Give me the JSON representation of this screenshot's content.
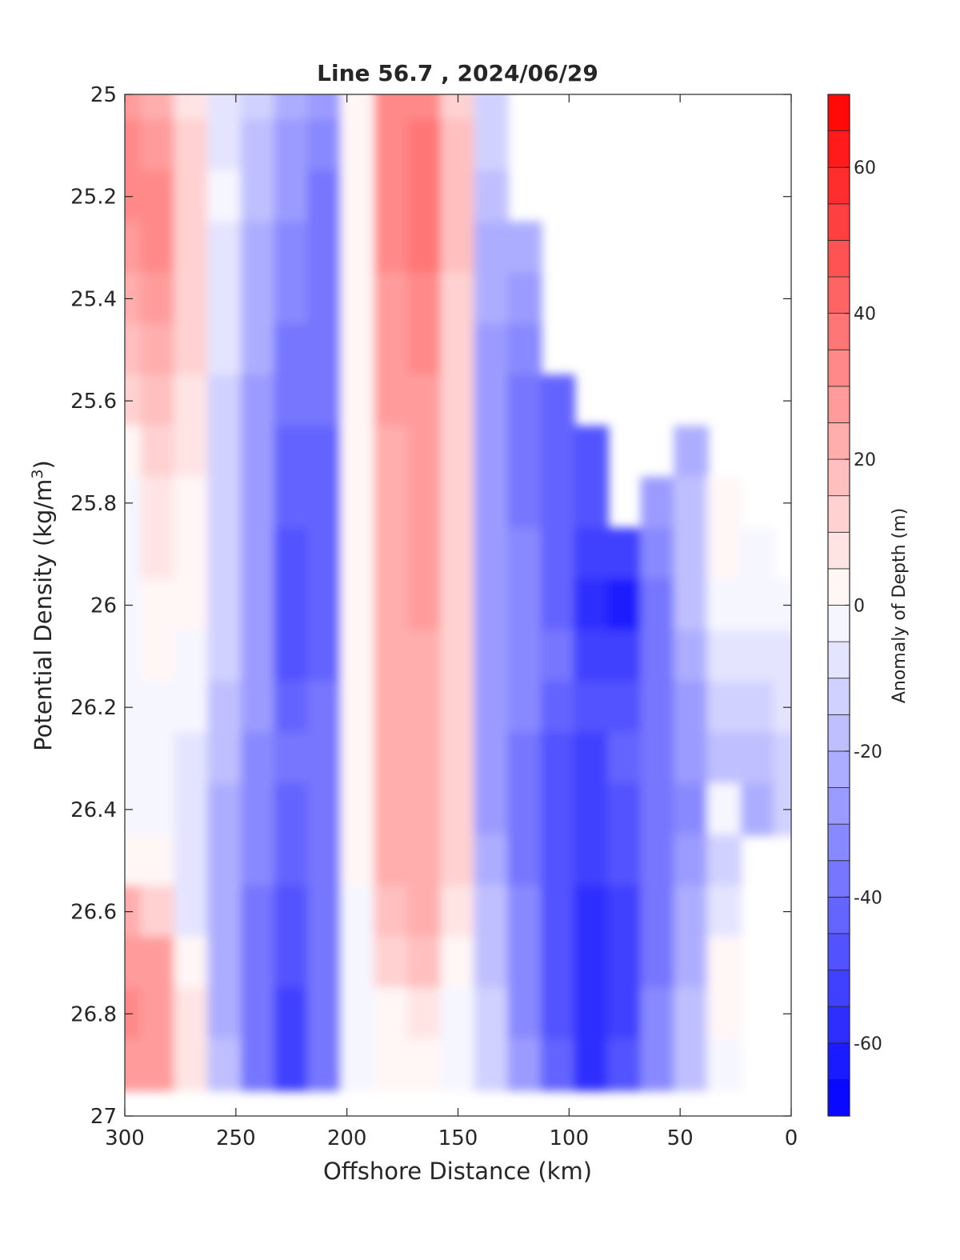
{
  "chart_data": {
    "type": "heatmap",
    "title": "Line 56.7 , 2024/06/29",
    "xlabel": "Offshore Distance (km)",
    "ylabel_main": "Potential Density (kg/m",
    "ylabel_sup": "3",
    "ylabel_close": ")",
    "colorbar_label": "Anomaly of Depth (m)",
    "xlim": [
      300,
      0
    ],
    "ylim": [
      25,
      27
    ],
    "x_reversed": true,
    "y_reversed": true,
    "xticks": [
      300,
      250,
      200,
      150,
      100,
      50,
      0
    ],
    "yticks": [
      25,
      25.2,
      25.4,
      25.6,
      25.8,
      26,
      26.2,
      26.4,
      26.6,
      26.8,
      27
    ],
    "ytick_labels": [
      "25",
      "25.2",
      "25.4",
      "25.6",
      "25.8",
      "26",
      "26.2",
      "26.4",
      "26.6",
      "26.8",
      "27"
    ],
    "colorbar_range": [
      -70,
      70
    ],
    "colorbar_step": 5,
    "colorbar_ticks": [
      60,
      40,
      20,
      0,
      -20,
      -40,
      -60
    ],
    "colormap": {
      "negative": "#0000ff",
      "zero": "#ffffff",
      "positive": "#ff0000"
    },
    "grid": false,
    "x": [
      300,
      285,
      270,
      255,
      240,
      225,
      210,
      195,
      180,
      165,
      150,
      135,
      120,
      105,
      90,
      75,
      60,
      45,
      30,
      15,
      0
    ],
    "y": [
      25,
      25.1,
      25.2,
      25.3,
      25.4,
      25.5,
      25.6,
      25.7,
      25.8,
      25.9,
      26,
      26.1,
      26.2,
      26.3,
      26.4,
      26.5,
      26.6,
      26.7,
      26.8,
      26.9
    ],
    "z": [
      [
        27,
        20,
        5,
        -8,
        -15,
        -25,
        -30,
        0,
        30,
        33,
        12,
        -12,
        null,
        null,
        null,
        null,
        null,
        null,
        null,
        null,
        null
      ],
      [
        30,
        25,
        10,
        -8,
        -18,
        -28,
        -33,
        0,
        33,
        38,
        15,
        -15,
        null,
        null,
        null,
        null,
        null,
        null,
        null,
        null,
        null
      ],
      [
        30,
        32,
        14,
        -5,
        -20,
        -30,
        -36,
        0,
        33,
        38,
        15,
        -20,
        null,
        null,
        null,
        null,
        null,
        null,
        null,
        null,
        null
      ],
      [
        25,
        30,
        14,
        -6,
        -22,
        -32,
        -38,
        0,
        30,
        35,
        15,
        -22,
        -25,
        null,
        null,
        null,
        null,
        null,
        null,
        null,
        null
      ],
      [
        20,
        25,
        12,
        -8,
        -23,
        -35,
        -38,
        0,
        28,
        32,
        13,
        -25,
        -30,
        null,
        null,
        null,
        null,
        null,
        null,
        null,
        null
      ],
      [
        15,
        22,
        10,
        -10,
        -25,
        -38,
        -40,
        0,
        25,
        30,
        12,
        -28,
        -35,
        null,
        null,
        null,
        null,
        null,
        null,
        null,
        null
      ],
      [
        10,
        18,
        8,
        -12,
        -28,
        -40,
        -40,
        0,
        25,
        28,
        10,
        -30,
        -38,
        -45,
        null,
        null,
        null,
        null,
        null,
        null,
        null
      ],
      [
        3,
        12,
        5,
        -14,
        -30,
        -42,
        -42,
        0,
        22,
        27,
        10,
        -30,
        -40,
        -45,
        -48,
        null,
        null,
        -22,
        null,
        null,
        null
      ],
      [
        -2,
        8,
        3,
        -15,
        -30,
        -45,
        -42,
        0,
        22,
        26,
        10,
        -30,
        -38,
        -42,
        -50,
        null,
        -30,
        -20,
        0,
        null,
        null
      ],
      [
        -5,
        5,
        2,
        -15,
        -30,
        -47,
        -43,
        0,
        21,
        25,
        10,
        -30,
        -35,
        -42,
        -55,
        -55,
        -35,
        -20,
        0,
        -3,
        null
      ],
      [
        -5,
        3,
        0,
        -15,
        -30,
        -48,
        -43,
        0,
        20,
        25,
        10,
        -30,
        -32,
        -42,
        -58,
        -62,
        -38,
        -20,
        -5,
        -5,
        -5
      ],
      [
        -3,
        0,
        -2,
        -15,
        -30,
        -47,
        -42,
        0,
        20,
        24,
        10,
        -30,
        -32,
        -40,
        -55,
        -55,
        -38,
        -25,
        -10,
        -8,
        -6
      ],
      [
        -3,
        -2,
        -4,
        -17,
        -30,
        -42,
        -40,
        0,
        20,
        24,
        10,
        -30,
        -35,
        -45,
        -50,
        -48,
        -40,
        -28,
        -15,
        -12,
        -10
      ],
      [
        -2,
        -4,
        -6,
        -20,
        -32,
        -40,
        -38,
        0,
        20,
        24,
        10,
        -30,
        -38,
        -48,
        -52,
        -45,
        -40,
        -30,
        -20,
        -18,
        -15
      ],
      [
        -2,
        -5,
        -8,
        -22,
        -35,
        -42,
        -38,
        0,
        20,
        24,
        10,
        -28,
        -38,
        -50,
        -55,
        -48,
        -40,
        -32,
        -5,
        -25,
        -15
      ],
      [
        0,
        0,
        -10,
        -25,
        -35,
        -45,
        -38,
        0,
        20,
        22,
        10,
        -25,
        -38,
        -50,
        -55,
        -50,
        -40,
        -30,
        -15,
        null,
        null
      ],
      [
        20,
        12,
        -8,
        -25,
        -38,
        -48,
        -38,
        -2,
        15,
        20,
        8,
        -20,
        -35,
        -50,
        -58,
        -52,
        -40,
        -25,
        -10,
        null,
        null
      ],
      [
        28,
        25,
        2,
        -22,
        -38,
        -50,
        -38,
        -5,
        10,
        15,
        0,
        -18,
        -35,
        -50,
        -60,
        -52,
        -38,
        -22,
        0,
        null,
        null
      ],
      [
        30,
        28,
        5,
        -22,
        -40,
        -55,
        -38,
        -5,
        0,
        5,
        -5,
        -15,
        -32,
        -48,
        -60,
        -52,
        -35,
        -20,
        0,
        null,
        null
      ],
      [
        28,
        25,
        5,
        -20,
        -40,
        -52,
        -38,
        -5,
        0,
        0,
        -5,
        -15,
        -30,
        -45,
        -60,
        -50,
        -35,
        -20,
        -5,
        null,
        null
      ]
    ]
  }
}
